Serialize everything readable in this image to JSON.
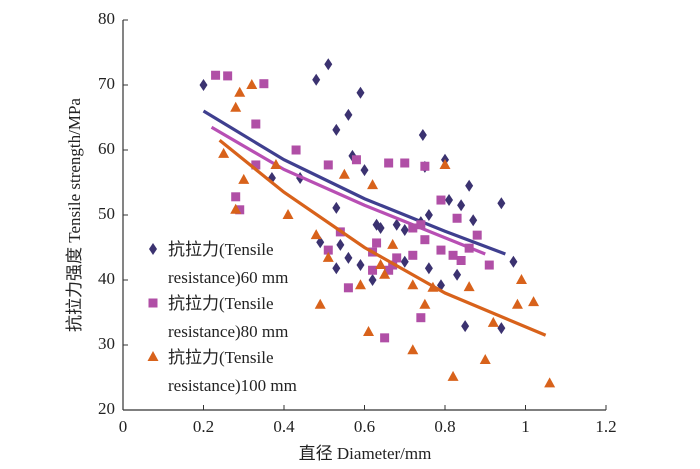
{
  "chart_data": {
    "type": "scatter",
    "xlabel": "直径 Diameter/mm",
    "ylabel": "抗拉力强度 Tensile strength/MPa",
    "xlim": [
      0,
      1.2
    ],
    "xticks": [
      0,
      0.2,
      0.4,
      0.6,
      0.8,
      1,
      1.2
    ],
    "ylim": [
      20,
      80
    ],
    "yticks": [
      20,
      30,
      40,
      50,
      60,
      70,
      80
    ],
    "grid": false,
    "series": [
      {
        "name": "抗拉力(Tensile resistance)60 mm",
        "color": "#3b3270",
        "marker": "diamond",
        "x": [
          0.2,
          0.48,
          0.51,
          0.53,
          0.56,
          0.59,
          0.57,
          0.6,
          0.44,
          0.37,
          0.53,
          0.63,
          0.64,
          0.68,
          0.7,
          0.79,
          0.56,
          0.59,
          0.62,
          0.7,
          0.76,
          0.74,
          0.76,
          0.745,
          0.75,
          0.8,
          0.81,
          0.84,
          0.86,
          0.87,
          0.83,
          0.85,
          0.94,
          0.97,
          0.94,
          0.53,
          0.49,
          0.54
        ],
        "values": [
          70,
          70.8,
          73.2,
          63.1,
          65.4,
          68.8,
          59.1,
          56.9,
          55.7,
          55.7,
          51.1,
          48.5,
          48,
          48.5,
          47.7,
          39.2,
          43.4,
          42.3,
          40,
          42.8,
          41.8,
          48.9,
          50,
          62.3,
          57.4,
          58.5,
          52.3,
          51.5,
          54.5,
          49.2,
          40.8,
          32.9,
          51.8,
          42.8,
          32.6,
          41.8,
          45.8,
          45.4
        ],
        "trend": {
          "color": "#3f3f8f",
          "x": [
            0.2,
            0.4,
            0.6,
            0.8,
            0.95
          ],
          "values": [
            66,
            58.5,
            52.5,
            47.5,
            44
          ]
        }
      },
      {
        "name": "抗拉力(Tensile resistance)80 mm",
        "color": "#b04fa6",
        "marker": "square",
        "x": [
          0.23,
          0.26,
          0.35,
          0.33,
          0.28,
          0.29,
          0.33,
          0.43,
          0.51,
          0.58,
          0.66,
          0.7,
          0.75,
          0.79,
          0.51,
          0.54,
          0.63,
          0.66,
          0.67,
          0.62,
          0.68,
          0.72,
          0.74,
          0.75,
          0.79,
          0.82,
          0.84,
          0.86,
          0.88,
          0.91,
          0.65,
          0.74,
          0.83,
          0.72,
          0.62,
          0.56
        ],
        "values": [
          71.5,
          71.4,
          70.2,
          64,
          52.8,
          50.8,
          57.7,
          60,
          57.7,
          58.5,
          58,
          58,
          57.5,
          52.3,
          44.6,
          47.4,
          45.7,
          41.5,
          42.3,
          41.5,
          43.4,
          43.8,
          48.5,
          46.2,
          44.6,
          43.8,
          43,
          44.9,
          46.9,
          42.3,
          31.1,
          34.2,
          49.5,
          48,
          44.3,
          38.8
        ],
        "trend": {
          "color": "#b84fb4",
          "x": [
            0.22,
            0.4,
            0.6,
            0.8,
            0.9
          ],
          "values": [
            63.5,
            57,
            51.5,
            46.5,
            44
          ]
        }
      },
      {
        "name": "抗拉力(Tensile resistance)100 mm",
        "color": "#d8621b",
        "marker": "triangle",
        "x": [
          0.25,
          0.28,
          0.29,
          0.32,
          0.3,
          0.28,
          0.38,
          0.41,
          0.48,
          0.51,
          0.55,
          0.62,
          0.59,
          0.61,
          0.64,
          0.67,
          0.65,
          0.72,
          0.72,
          0.75,
          0.77,
          0.8,
          0.82,
          0.86,
          0.9,
          0.92,
          0.98,
          0.99,
          1.02,
          1.06,
          0.49
        ],
        "values": [
          59.4,
          66.5,
          68.8,
          70,
          55.4,
          50.8,
          57.7,
          50,
          46.9,
          43.4,
          56.2,
          54.6,
          39.2,
          32,
          42.3,
          45.4,
          40.8,
          29.2,
          39.2,
          36.2,
          38.8,
          57.7,
          25.1,
          38.9,
          27.7,
          33.4,
          36.2,
          40,
          36.6,
          24.1,
          36.2
        ],
        "trend": {
          "color": "#d8621b",
          "x": [
            0.24,
            0.4,
            0.6,
            0.8,
            1.05
          ],
          "values": [
            61.5,
            53.5,
            45,
            38,
            31.5
          ]
        }
      }
    ]
  }
}
